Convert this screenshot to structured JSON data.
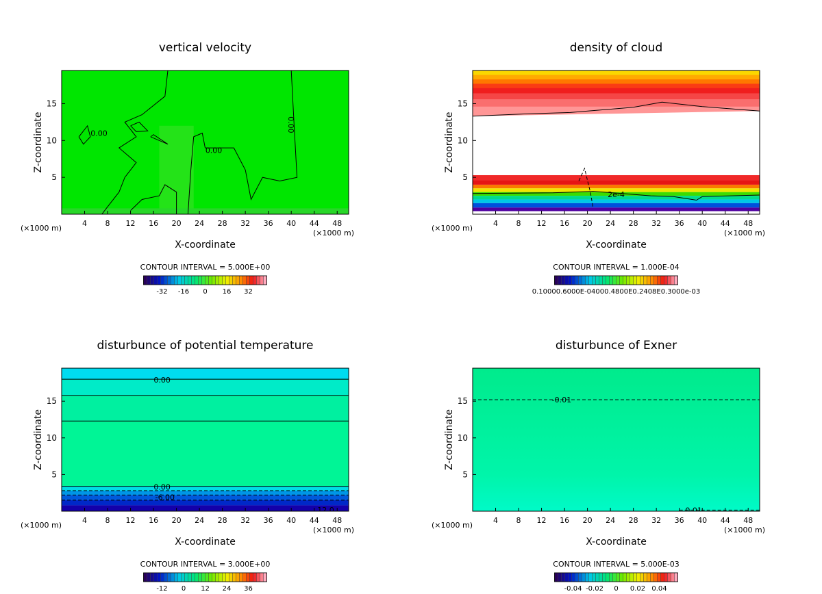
{
  "chart_data": [
    {
      "type": "heatmap",
      "title": "vertical velocity",
      "xlabel": "X-coordinate",
      "ylabel": "Z-coordinate",
      "x_unit": "(×1000 m)",
      "xlim": [
        0,
        50
      ],
      "ylim": [
        0,
        19.5
      ],
      "xticks": [
        4,
        8,
        12,
        16,
        20,
        24,
        28,
        32,
        36,
        40,
        44,
        48
      ],
      "yticks": [
        5,
        10,
        15
      ],
      "contour_interval": "CONTOUR INTERVAL = 5.000E+00",
      "contour_labels": [
        {
          "text": "0.00",
          "x": 6.5,
          "y": 11
        },
        {
          "text": "0.00",
          "x": 26.5,
          "y": 8.7
        },
        {
          "text": "0.00",
          "x": 39.5,
          "y": 12.5
        }
      ],
      "colorbar_ticks": [
        "-32",
        "-16",
        "0",
        "16",
        "32"
      ],
      "colorbar_range": [
        -40,
        40
      ]
    },
    {
      "type": "heatmap",
      "title": "density of cloud",
      "xlabel": "X-coordinate",
      "ylabel": "Z-coordinate",
      "x_unit": "(×1000 m)",
      "xlim": [
        0,
        50
      ],
      "ylim": [
        0,
        19.5
      ],
      "xticks": [
        4,
        8,
        12,
        16,
        20,
        24,
        28,
        32,
        36,
        40,
        44,
        48
      ],
      "yticks": [
        5,
        10,
        15
      ],
      "contour_interval": "CONTOUR INTERVAL = 1.000E-04",
      "contour_labels": [
        {
          "text": "2e-4",
          "x": 25,
          "y": 2.7
        }
      ],
      "colorbar_ticks": [
        "0.10000.6000E-04000.4800E0.2408E0.3000e-03"
      ],
      "colorbar_range": [
        0,
        0.0007
      ]
    },
    {
      "type": "heatmap",
      "title": "disturbunce of potential temperature",
      "xlabel": "X-coordinate",
      "ylabel": "Z-coordinate",
      "x_unit": "(×1000 m)",
      "xlim": [
        0,
        50
      ],
      "ylim": [
        0,
        19.5
      ],
      "xticks": [
        4,
        8,
        12,
        16,
        20,
        24,
        28,
        32,
        36,
        40,
        44,
        48
      ],
      "yticks": [
        5,
        10,
        15
      ],
      "contour_interval": "CONTOUR INTERVAL = 3.000E+00",
      "contour_labels": [
        {
          "text": "0.00",
          "x": 17.5,
          "y": 17.9
        },
        {
          "text": "0.00",
          "x": 17.5,
          "y": 3.3
        },
        {
          "text": "-6.00",
          "x": 18,
          "y": 1.9
        },
        {
          "text": "12.0",
          "x": 46,
          "y": 0.2
        }
      ],
      "colorbar_ticks": [
        "-12",
        "0",
        "12",
        "24",
        "36"
      ],
      "colorbar_range": [
        -18,
        42
      ]
    },
    {
      "type": "heatmap",
      "title": "disturbunce of Exner",
      "xlabel": "X-coordinate",
      "ylabel": "Z-coordinate",
      "x_unit": "(×1000 m)",
      "xlim": [
        0,
        50
      ],
      "ylim": [
        0,
        19.5
      ],
      "xticks": [
        4,
        8,
        12,
        16,
        20,
        24,
        28,
        32,
        36,
        40,
        44,
        48
      ],
      "yticks": [
        5,
        10,
        15
      ],
      "contour_interval": "CONTOUR INTERVAL = 5.000E-03",
      "contour_labels": [
        {
          "text": "-0.01",
          "x": 15.5,
          "y": 15.2
        },
        {
          "text": "0.01",
          "x": 38.5,
          "y": 0.15
        }
      ],
      "colorbar_ticks": [
        "-0.04",
        "-0.02",
        "0",
        "0.02",
        "0.04"
      ],
      "colorbar_range": [
        -0.05,
        0.05
      ]
    }
  ]
}
